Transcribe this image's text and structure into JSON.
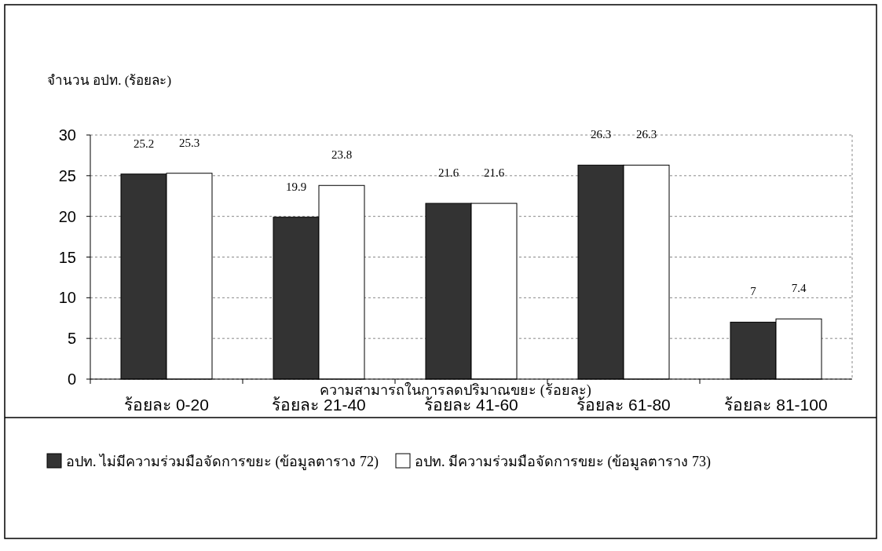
{
  "chart_data": {
    "type": "bar",
    "ylabel": "จำนวน อปท. (ร้อยละ)",
    "xlabel": "ความสามารถในการลดปริมาณขยะ (ร้อยละ)",
    "categories": [
      "ร้อยละ 0-20",
      "ร้อยละ 21-40",
      "ร้อยละ 41-60",
      "ร้อยละ 61-80",
      "ร้อยละ 81-100"
    ],
    "series": [
      {
        "name": "อปท. ไม่มีความร่วมมือจัดการขยะ (ข้อมูลตาราง 72)",
        "color": "#333333",
        "values": [
          25.2,
          19.9,
          21.6,
          26.3,
          7
        ]
      },
      {
        "name": "อปท. มีความร่วมมือจัดการขยะ (ข้อมูลตาราง 73)",
        "color": "#ffffff",
        "values": [
          25.3,
          23.8,
          21.6,
          26.3,
          7.4
        ]
      }
    ],
    "ylim": [
      0,
      30
    ],
    "yticks": [
      0,
      5,
      10,
      15,
      20,
      25,
      30
    ],
    "grid": "y",
    "legend": "bottom",
    "data_labels": true
  }
}
